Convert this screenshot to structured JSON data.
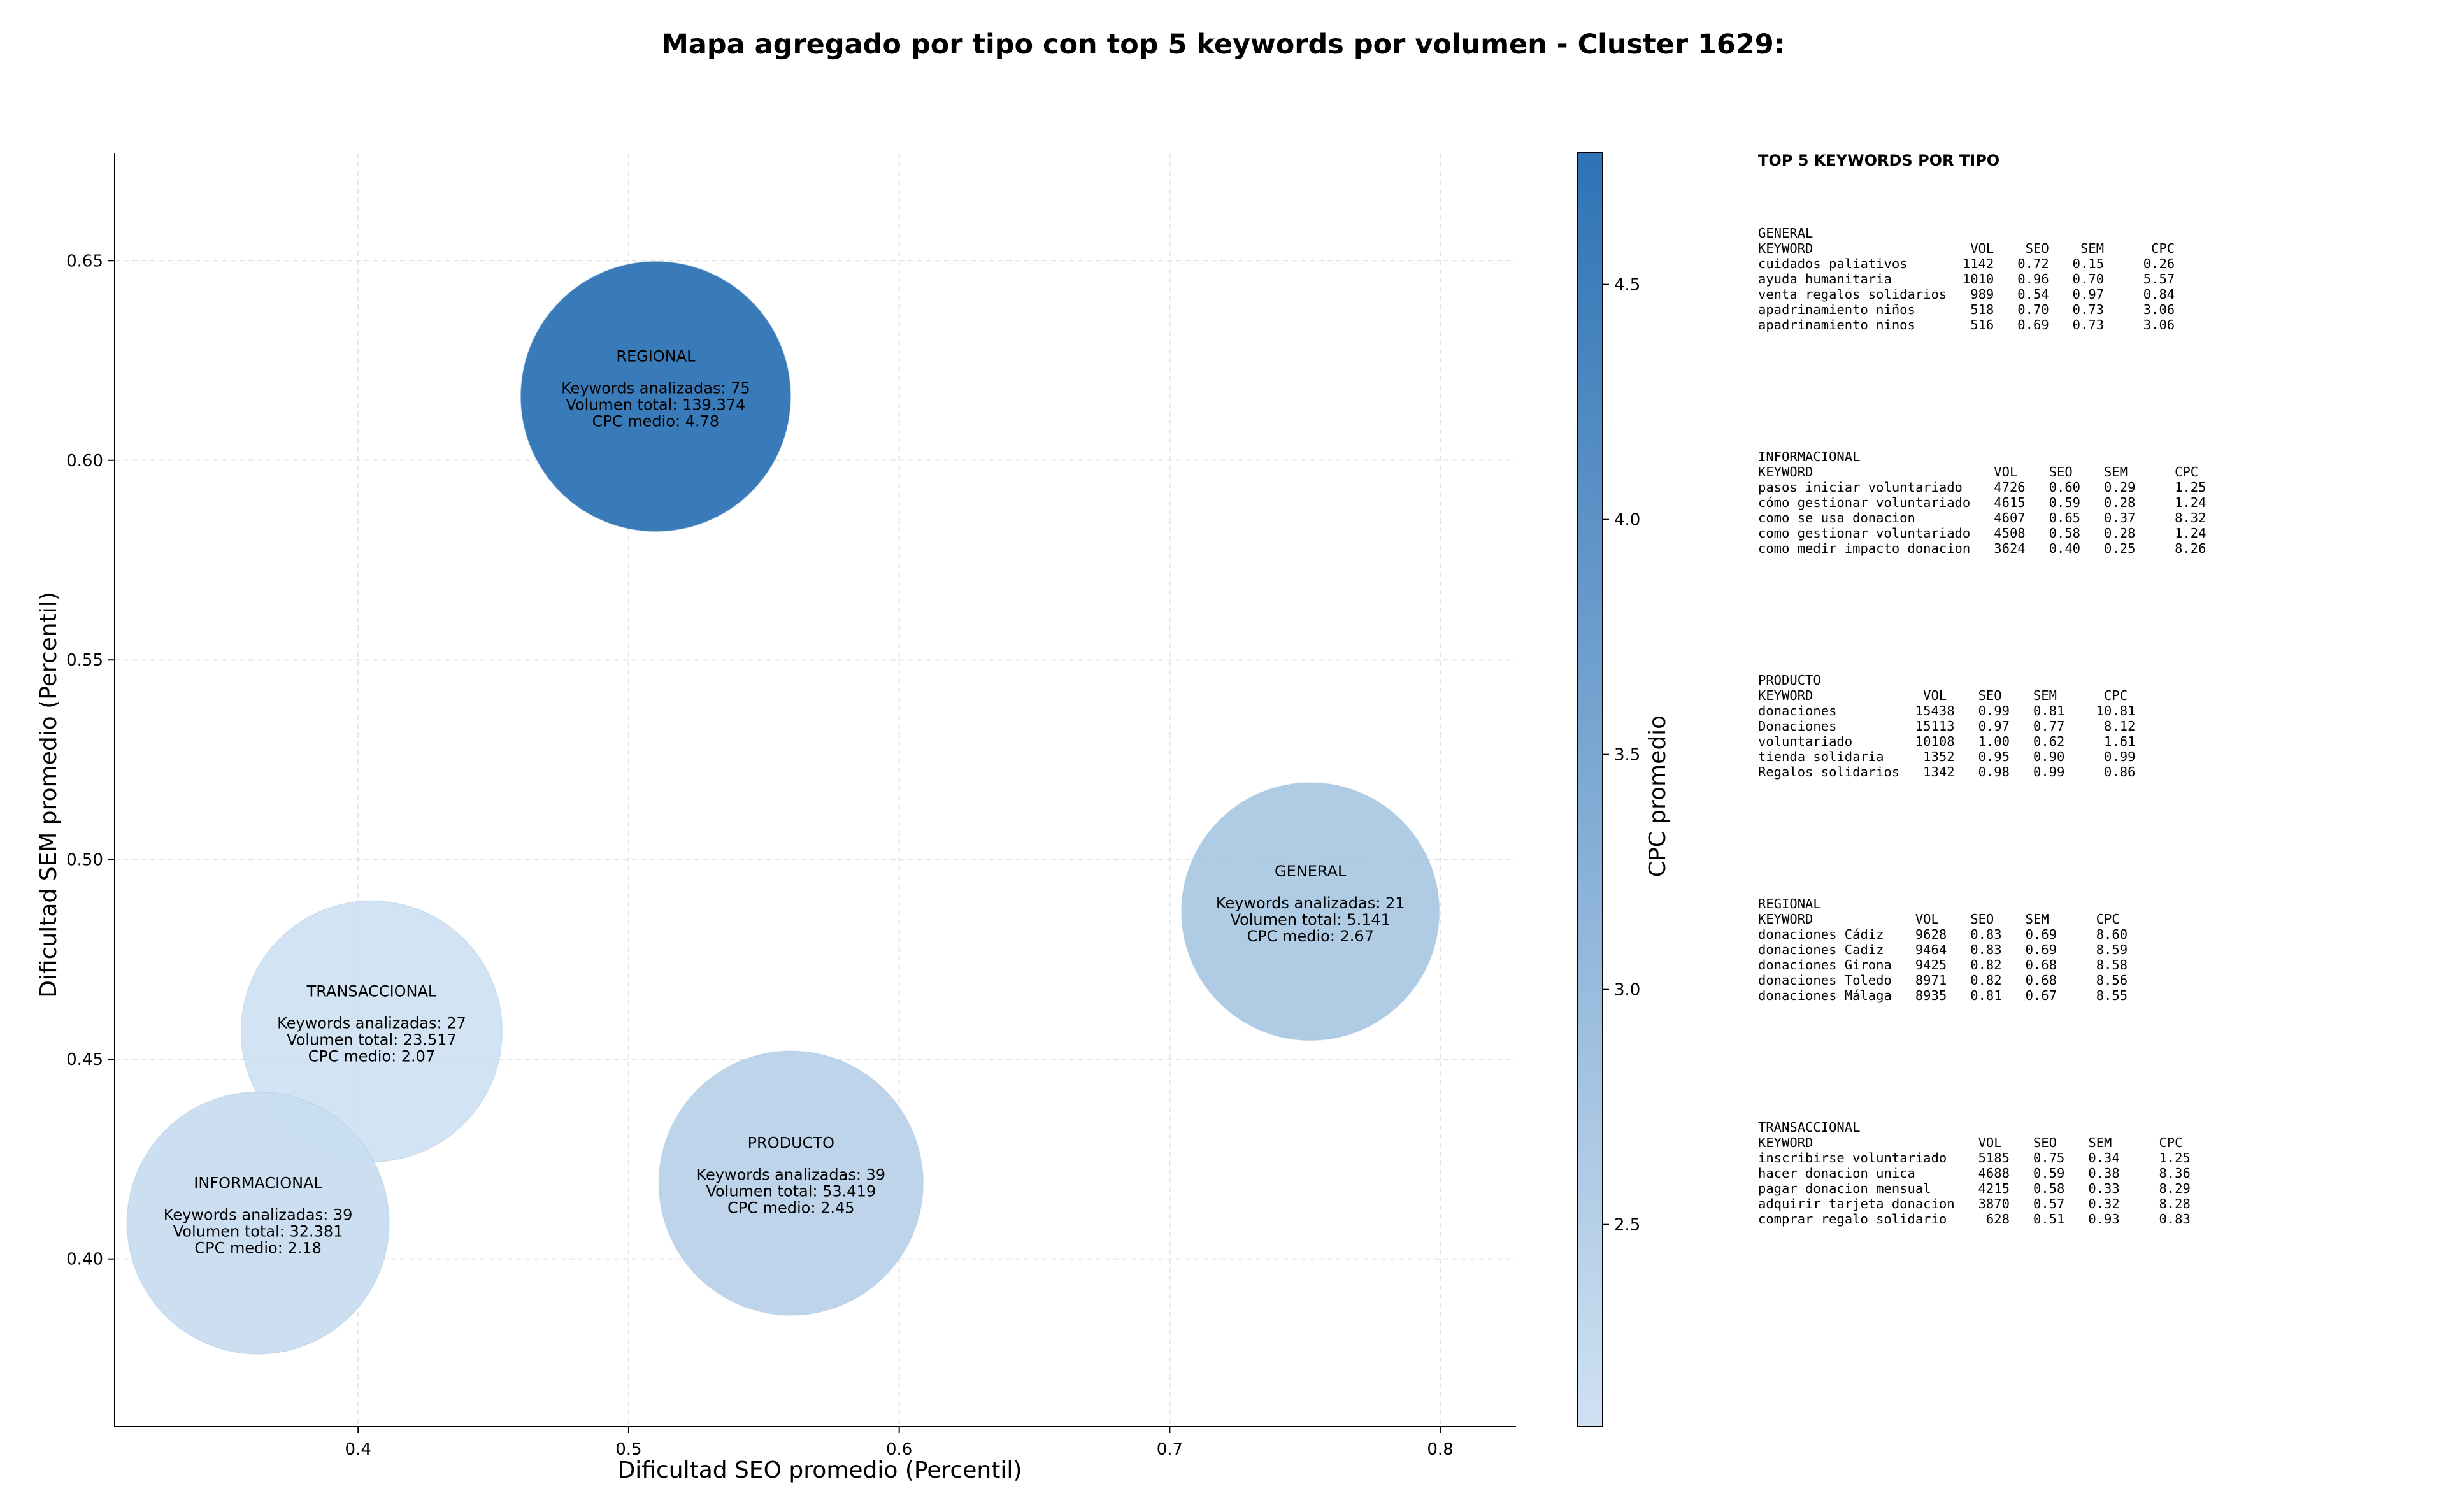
{
  "chart_data": {
    "type": "scatter",
    "title": "Mapa agregado por tipo con top 5 keywords por volumen - Cluster 1629:",
    "xlabel": "Dificultad SEO promedio (Percentil)",
    "ylabel": "Dificultad SEM promedio (Percentil)",
    "xlim": [
      0.31,
      0.828
    ],
    "ylim": [
      0.358,
      0.677
    ],
    "xticks": [
      0.4,
      0.5,
      0.6,
      0.7,
      0.8
    ],
    "xtick_labels": [
      "0.4",
      "0.5",
      "0.6",
      "0.7",
      "0.8"
    ],
    "yticks": [
      0.4,
      0.45,
      0.5,
      0.55,
      0.6,
      0.65
    ],
    "ytick_labels": [
      "0.40",
      "0.45",
      "0.50",
      "0.55",
      "0.60",
      "0.65"
    ],
    "grid": true,
    "bubble_size_encodes": "Volumen total",
    "colorbar": {
      "label": "CPC promedio",
      "range": [
        2.07,
        4.78
      ],
      "ticks": [
        2.5,
        3.0,
        3.5,
        4.0,
        4.5
      ],
      "tick_labels": [
        "2.5",
        "3.0",
        "3.5",
        "4.0",
        "4.5"
      ],
      "color_low": "#d0e1f2",
      "color_high": "#2e73b5"
    },
    "bubbles": [
      {
        "name": "REGIONAL",
        "x": 0.51,
        "y": 0.616,
        "keywords": 75,
        "volume": 139374,
        "cpc": 4.78,
        "line1": "Keywords analizadas: 75",
        "line2": "Volumen total: 139.374",
        "line3": "CPC medio: 4.78"
      },
      {
        "name": "GENERAL",
        "x": 0.752,
        "y": 0.487,
        "keywords": 21,
        "volume": 5141,
        "cpc": 2.67,
        "line1": "Keywords analizadas: 21",
        "line2": "Volumen total: 5.141",
        "line3": "CPC medio: 2.67"
      },
      {
        "name": "TRANSACCIONAL",
        "x": 0.405,
        "y": 0.457,
        "keywords": 27,
        "volume": 23517,
        "cpc": 2.07,
        "line1": "Keywords analizadas: 27",
        "line2": "Volumen total: 23.517",
        "line3": "CPC medio: 2.07"
      },
      {
        "name": "PRODUCTO",
        "x": 0.56,
        "y": 0.419,
        "keywords": 39,
        "volume": 53419,
        "cpc": 2.45,
        "line1": "Keywords analizadas: 39",
        "line2": "Volumen total: 53.419",
        "line3": "CPC medio: 2.45"
      },
      {
        "name": "INFORMACIONAL",
        "x": 0.363,
        "y": 0.409,
        "keywords": 39,
        "volume": 32381,
        "cpc": 2.18,
        "line1": "Keywords analizadas: 39",
        "line2": "Volumen total: 32.381",
        "line3": "CPC medio: 2.18"
      }
    ],
    "top_keywords_panel": {
      "title": "TOP 5 KEYWORDS POR TIPO",
      "sections": [
        {
          "type": "GENERAL",
          "lines": [
            "KEYWORD                    VOL    SEO    SEM      CPC",
            "cuidados paliativos       1142   0.72   0.15     0.26",
            "ayuda humanitaria         1010   0.96   0.70     5.57",
            "venta regalos solidarios   989   0.54   0.97     0.84",
            "apadrinamiento niños       518   0.70   0.73     3.06",
            "apadrinamiento ninos       516   0.69   0.73     3.06"
          ]
        },
        {
          "type": "INFORMACIONAL",
          "lines": [
            "KEYWORD                       VOL    SEO    SEM      CPC",
            "pasos iniciar voluntariado    4726   0.60   0.29     1.25",
            "cómo gestionar voluntariado   4615   0.59   0.28     1.24",
            "como se usa donacion          4607   0.65   0.37     8.32",
            "como gestionar voluntariado   4508   0.58   0.28     1.24",
            "como medir impacto donacion   3624   0.40   0.25     8.26"
          ]
        },
        {
          "type": "PRODUCTO",
          "lines": [
            "KEYWORD              VOL    SEO    SEM      CPC",
            "donaciones          15438   0.99   0.81    10.81",
            "Donaciones          15113   0.97   0.77     8.12",
            "voluntariado        10108   1.00   0.62     1.61",
            "tienda solidaria     1352   0.95   0.90     0.99",
            "Regalos solidarios   1342   0.98   0.99     0.86"
          ]
        },
        {
          "type": "REGIONAL",
          "lines": [
            "KEYWORD             VOL    SEO    SEM      CPC",
            "donaciones Cádiz    9628   0.83   0.69     8.60",
            "donaciones Cadiz    9464   0.83   0.69     8.59",
            "donaciones Girona   9425   0.82   0.68     8.58",
            "donaciones Toledo   8971   0.82   0.68     8.56",
            "donaciones Málaga   8935   0.81   0.67     8.55"
          ]
        },
        {
          "type": "TRANSACCIONAL",
          "lines": [
            "KEYWORD                     VOL    SEO    SEM      CPC",
            "inscribirse voluntariado    5185   0.75   0.34     1.25",
            "hacer donacion unica        4688   0.59   0.38     8.36",
            "pagar donacion mensual      4215   0.58   0.33     8.29",
            "adquirir tarjeta donacion   3870   0.57   0.32     8.28",
            "comprar regalo solidario     628   0.51   0.93     0.83"
          ]
        }
      ]
    }
  }
}
